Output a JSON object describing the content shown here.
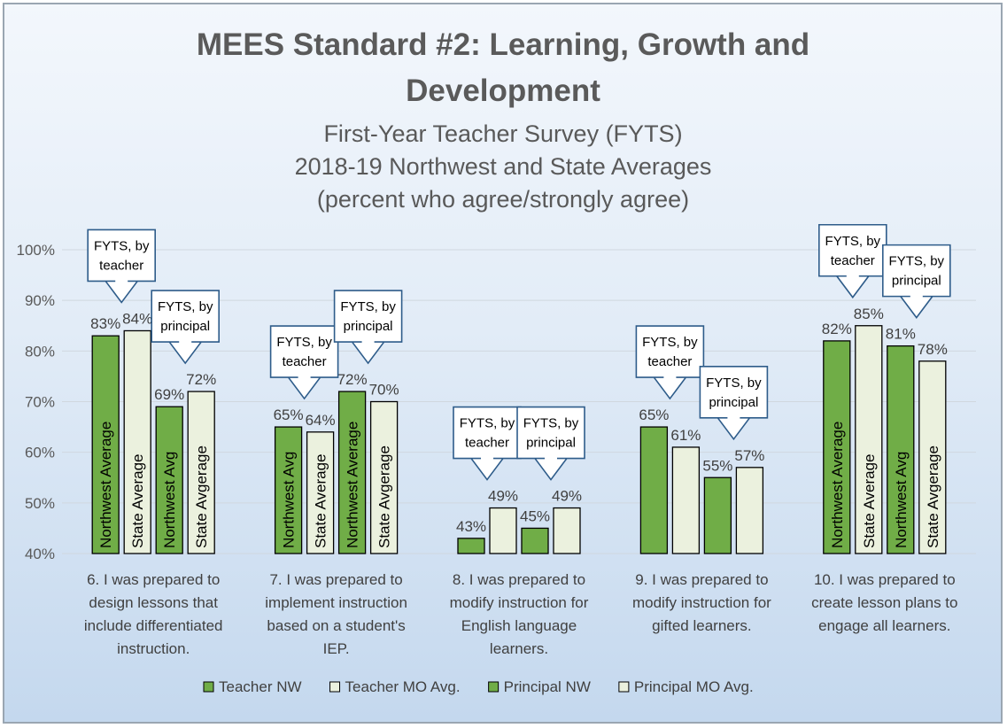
{
  "chart_data": {
    "type": "bar",
    "title_lines": [
      "MEES Standard #2: Learning, Growth and",
      "Development"
    ],
    "subtitle_lines": [
      "First-Year Teacher Survey (FYTS)",
      "2018-19 Northwest and State Averages",
      "(percent who agree/strongly agree)"
    ],
    "ylim": [
      0.4,
      1.0
    ],
    "y_ticks": [
      {
        "value": 1.0,
        "label": "100%"
      },
      {
        "value": 0.9,
        "label": "90%"
      },
      {
        "value": 0.8,
        "label": "80%"
      },
      {
        "value": 0.7,
        "label": "70%"
      },
      {
        "value": 0.6,
        "label": "60%"
      },
      {
        "value": 0.5,
        "label": "50%"
      },
      {
        "value": 0.4,
        "label": "40%"
      }
    ],
    "grid": true,
    "categories": [
      [
        "6. I was prepared to",
        "design lessons that",
        "include differentiated",
        "instruction."
      ],
      [
        "7. I was prepared to",
        "implement instruction",
        "based on a student's",
        "IEP."
      ],
      [
        "8. I was prepared to",
        "modify instruction for",
        "English language",
        "learners."
      ],
      [
        "9. I was prepared to",
        "modify instruction for",
        "gifted learners."
      ],
      [
        "10. I was prepared to",
        "create lesson plans to",
        "engage all learners."
      ]
    ],
    "series": [
      {
        "name": "Teacher NW",
        "color": "#70ad47",
        "values": [
          0.83,
          0.65,
          0.43,
          0.65,
          0.82
        ],
        "value_labels": [
          "83%",
          "65%",
          "43%",
          "65%",
          "82%"
        ],
        "bar_labels": [
          "Northwest Average",
          "Northwest Avg",
          "",
          "",
          "Northwest Average"
        ]
      },
      {
        "name": "Teacher MO Avg.",
        "color": "#ebf1de",
        "values": [
          0.84,
          0.64,
          0.49,
          0.61,
          0.85
        ],
        "value_labels": [
          "84%",
          "64%",
          "49%",
          "61%",
          "85%"
        ],
        "bar_labels": [
          "State Average",
          "State Average",
          "",
          "",
          "State Average"
        ]
      },
      {
        "name": "Principal NW",
        "color": "#70ad47",
        "values": [
          0.69,
          0.72,
          0.45,
          0.55,
          0.81
        ],
        "value_labels": [
          "69%",
          "72%",
          "45%",
          "55%",
          "81%"
        ],
        "bar_labels": [
          "Northwest Avg",
          "Northwest Average",
          "",
          "",
          "Northwest Avg"
        ]
      },
      {
        "name": "Principal MO Avg.",
        "color": "#ebf1de",
        "values": [
          0.72,
          0.7,
          0.49,
          0.57,
          0.78
        ],
        "value_labels": [
          "72%",
          "70%",
          "49%",
          "57%",
          "78%"
        ],
        "bar_labels": [
          "State Avgerage",
          "State Avgerage",
          "",
          "",
          "State Avgerage"
        ]
      }
    ],
    "annotations": [
      {
        "group": 0,
        "role": "teacher",
        "lines": [
          "FYTS, by",
          "teacher"
        ]
      },
      {
        "group": 0,
        "role": "principal",
        "lines": [
          "FYTS, by",
          "principal"
        ]
      },
      {
        "group": 1,
        "role": "teacher",
        "lines": [
          "FYTS, by",
          "teacher"
        ]
      },
      {
        "group": 1,
        "role": "principal",
        "lines": [
          "FYTS, by",
          "principal"
        ]
      },
      {
        "group": 2,
        "role": "teacher",
        "lines": [
          "FYTS, by",
          "teacher"
        ]
      },
      {
        "group": 2,
        "role": "principal",
        "lines": [
          "FYTS, by",
          "principal"
        ]
      },
      {
        "group": 3,
        "role": "teacher",
        "lines": [
          "FYTS, by",
          "teacher"
        ]
      },
      {
        "group": 3,
        "role": "principal",
        "lines": [
          "FYTS, by",
          "principal"
        ]
      },
      {
        "group": 4,
        "role": "teacher",
        "lines": [
          "FYTS, by",
          "teacher"
        ]
      },
      {
        "group": 4,
        "role": "principal",
        "lines": [
          "FYTS, by",
          "principal"
        ]
      }
    ],
    "legend_position": "bottom",
    "colors": {
      "green": "#70ad47",
      "light": "#ebf1de",
      "bar_border": "#000000",
      "callout_border": "#2e5c8a"
    }
  }
}
